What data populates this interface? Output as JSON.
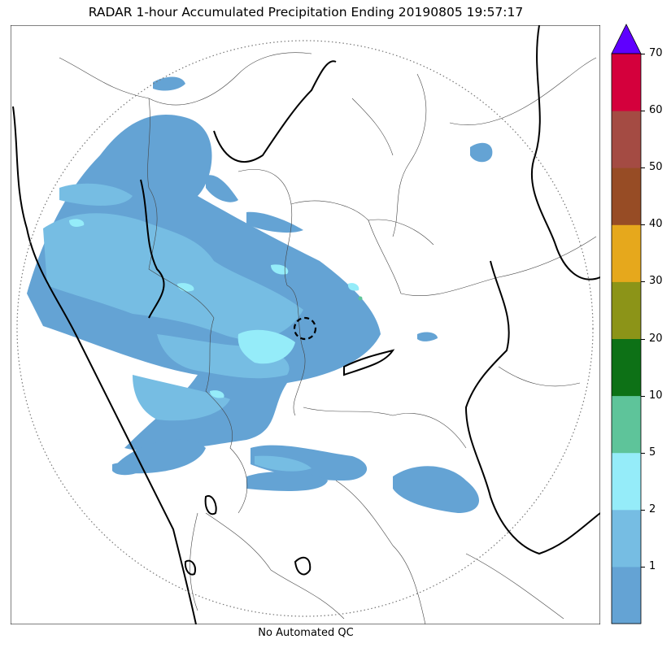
{
  "title": "RADAR 1-hour Accumulated Precipitation Ending 20190805 19:57:17",
  "footer": "No Automated QC",
  "colorbar": {
    "labels": [
      "1",
      "2",
      "5",
      "10",
      "20",
      "30",
      "40",
      "50",
      "60",
      "70"
    ],
    "bins": [
      {
        "color": "#64a3d4"
      },
      {
        "color": "#76bde3"
      },
      {
        "color": "#95ecf9"
      },
      {
        "color": "#5ec49a"
      },
      {
        "color": "#0d7116"
      },
      {
        "color": "#8c9418"
      },
      {
        "color": "#e6a81c"
      },
      {
        "color": "#974c25"
      },
      {
        "color": "#a44b43"
      },
      {
        "color": "#d4003c"
      }
    ],
    "extend_color": "#5f00ff"
  },
  "colors": {
    "light_rain": "#64a3d4",
    "moderate_rain": "#76bde3",
    "heavy_rain": "#95ecf9",
    "coast_outline": "#000000",
    "district_lines": "#444444"
  }
}
